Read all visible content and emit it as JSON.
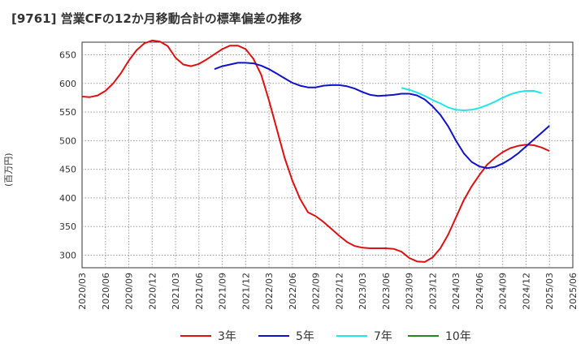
{
  "title": "[9761]  営業CFの12か月移動合計の標準偏差の推移",
  "chart_data": {
    "type": "line",
    "title": "[9761]  営業CFの12か月移動合計の標準偏差の推移",
    "ylabel": "(百万円)",
    "xlabel": "",
    "ylim": [
      278,
      672
    ],
    "yticks": [
      300,
      350,
      400,
      450,
      500,
      550,
      600,
      650
    ],
    "grid": true,
    "legend_position": "bottom",
    "x_tick_labels": [
      "2020/03",
      "2020/06",
      "2020/09",
      "2020/12",
      "2021/03",
      "2021/06",
      "2021/09",
      "2021/12",
      "2022/03",
      "2022/06",
      "2022/09",
      "2022/12",
      "2023/03",
      "2023/06",
      "2023/09",
      "2023/12",
      "2024/03",
      "2024/06",
      "2024/09",
      "2024/12",
      "2025/03",
      "2025/06"
    ],
    "series": [
      {
        "name": "3年",
        "color": "#dd1111",
        "start": "2020/03",
        "values": [
          577,
          576,
          579,
          587,
          600,
          618,
          640,
          658,
          670,
          675,
          673,
          665,
          645,
          633,
          630,
          634,
          642,
          651,
          660,
          666,
          666,
          660,
          643,
          615,
          570,
          520,
          470,
          430,
          398,
          375,
          368,
          358,
          346,
          334,
          323,
          316,
          313,
          312,
          312,
          312,
          311,
          306,
          295,
          289,
          288,
          296,
          312,
          336,
          366,
          396,
          420,
          440,
          458,
          470,
          480,
          487,
          491,
          493,
          492,
          488,
          482
        ]
      },
      {
        "name": "5年",
        "color": "#1111cc",
        "start": "2021/08",
        "values": [
          625,
          630,
          633,
          636,
          636,
          635,
          631,
          625,
          617,
          609,
          601,
          596,
          593,
          593,
          596,
          597,
          597,
          595,
          591,
          585,
          580,
          578,
          579,
          580,
          582,
          582,
          579,
          572,
          560,
          545,
          525,
          500,
          478,
          463,
          455,
          452,
          454,
          460,
          468,
          478,
          490,
          502,
          514,
          526
        ]
      },
      {
        "name": "7年",
        "color": "#22e6e6",
        "start": "2023/08",
        "values": [
          592,
          589,
          584,
          578,
          571,
          565,
          558,
          554,
          553,
          554,
          557,
          562,
          568,
          575,
          581,
          585,
          587,
          587,
          583
        ]
      },
      {
        "name": "10年",
        "color": "#228822",
        "start": "2025/03",
        "values": []
      }
    ]
  },
  "legend": {
    "items": [
      {
        "label": "3年",
        "color": "#dd1111"
      },
      {
        "label": "5年",
        "color": "#1111cc"
      },
      {
        "label": "7年",
        "color": "#22e6e6"
      },
      {
        "label": "10年",
        "color": "#228822"
      }
    ]
  }
}
